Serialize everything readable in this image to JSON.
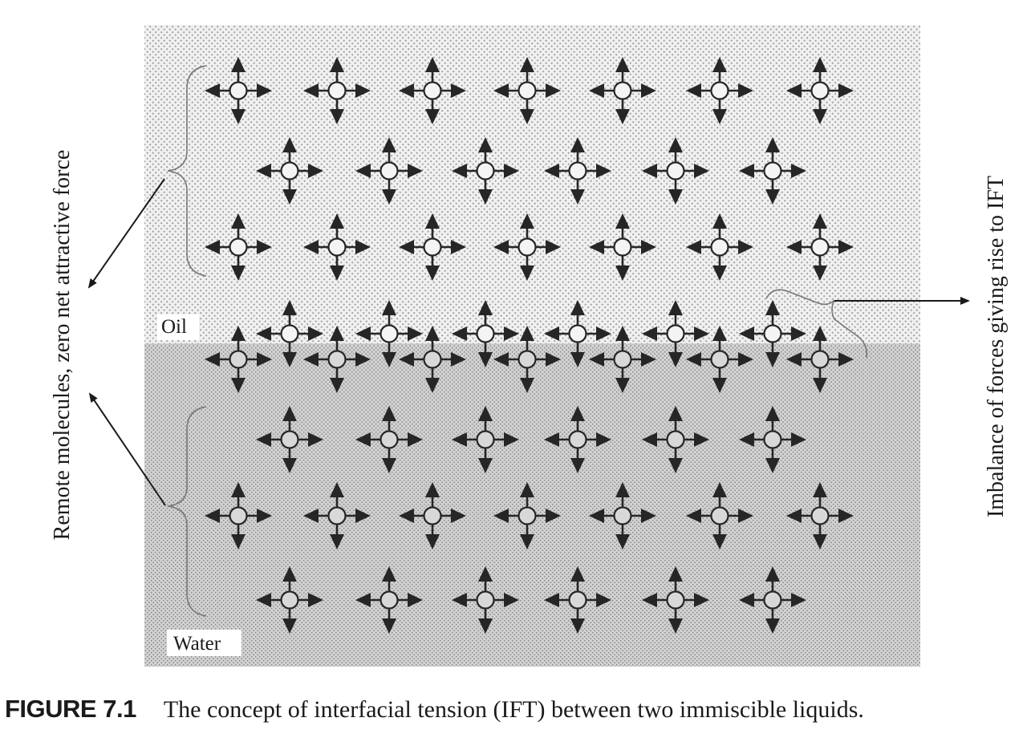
{
  "figure": {
    "labels": {
      "oil": "Oil",
      "water": "Water",
      "left_annotation": "Remote molecules, zero net attractive force",
      "right_annotation": "Imbalance of forces giving rise to IFT"
    },
    "colors": {
      "oil_background": "#f0f0f0",
      "oil_dots": "#9a9a9a",
      "water_background": "#d3d3d3",
      "water_dots": "#8a8a8a",
      "molecule_arrows": "#262626",
      "line": "#1a1a1a"
    },
    "molecule_grid": {
      "long_row_count": 7,
      "short_row_count": 6,
      "rows": [
        {
          "phase": "oil",
          "kind": "long"
        },
        {
          "phase": "oil",
          "kind": "short"
        },
        {
          "phase": "oil",
          "kind": "long"
        },
        {
          "phase": "oil",
          "kind": "short"
        },
        {
          "phase": "water",
          "kind": "long"
        },
        {
          "phase": "water",
          "kind": "short"
        },
        {
          "phase": "water",
          "kind": "long"
        },
        {
          "phase": "water",
          "kind": "short"
        }
      ]
    }
  },
  "caption": {
    "number": "FIGURE 7.1",
    "text": "The concept of interfacial tension (IFT) between two immiscible liquids."
  }
}
